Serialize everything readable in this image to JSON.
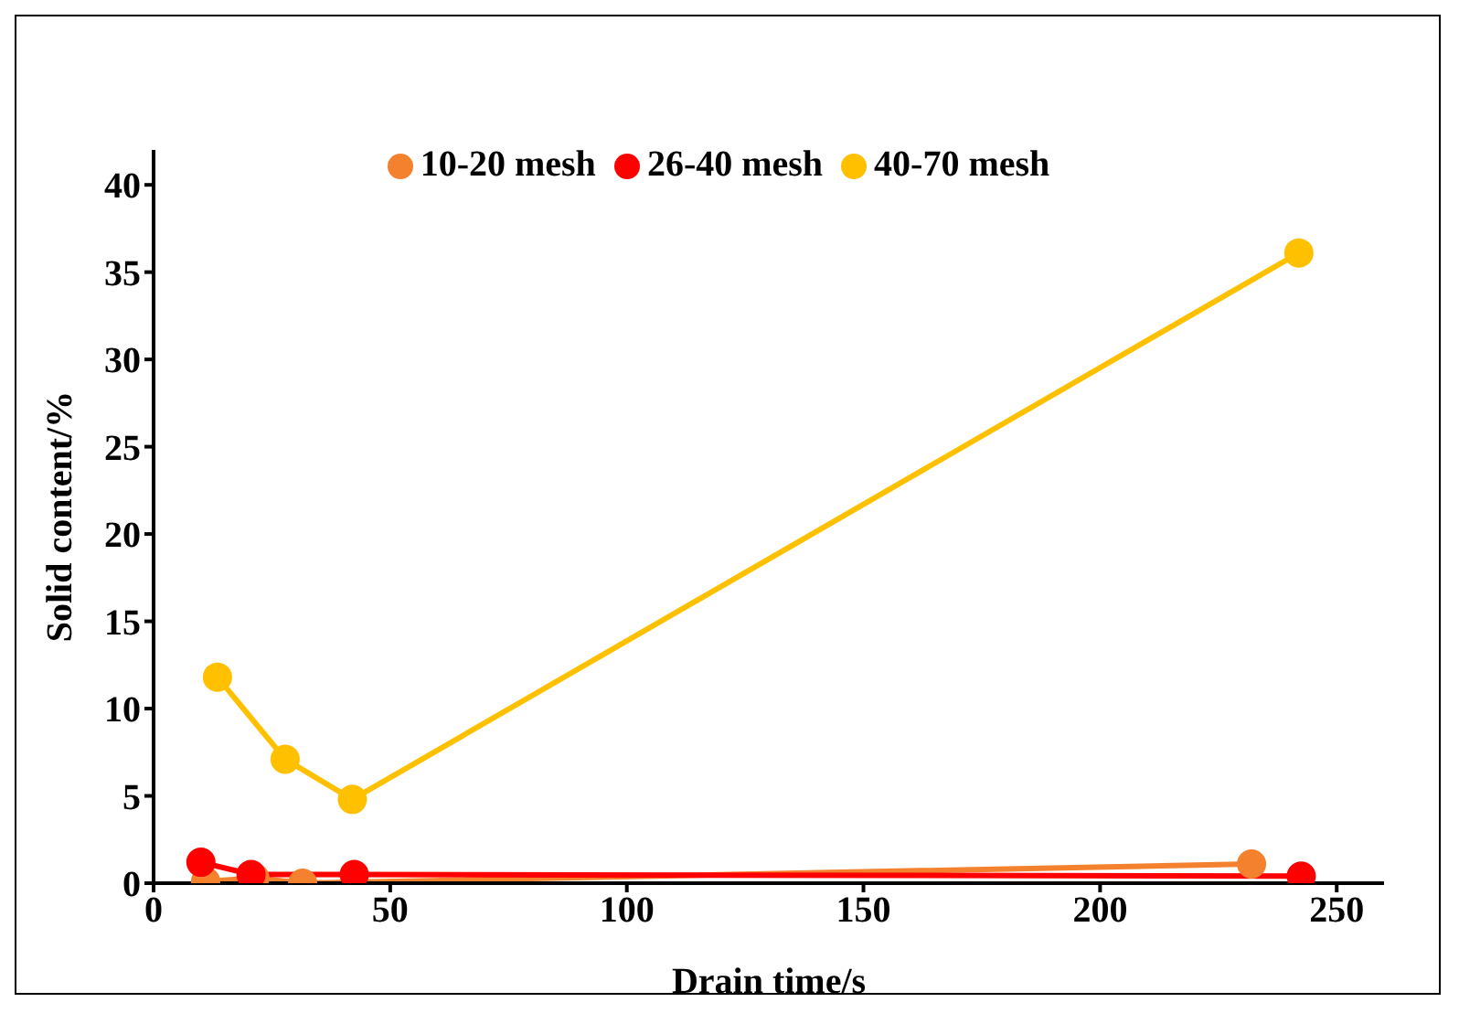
{
  "chart_data": {
    "type": "line",
    "xlabel": "Drain time/s",
    "ylabel": "Solid content/%",
    "xlim": [
      0,
      260
    ],
    "xticks": [
      0,
      50,
      100,
      150,
      200,
      250
    ],
    "ylim": [
      0,
      42
    ],
    "yticks": [
      0,
      5,
      10,
      15,
      20,
      25,
      30,
      35,
      40
    ],
    "legend": "top",
    "marker": "circle",
    "line_style": "solid",
    "grid": false,
    "series": [
      {
        "name": "10-20 mesh",
        "color": "#f4812d",
        "x": [
          11,
          21.4,
          31.5,
          232
        ],
        "values": [
          0.1,
          0.3,
          0,
          1.1
        ]
      },
      {
        "name": "26-40 mesh",
        "color": "#ff0000",
        "x": [
          10,
          20.6,
          42.4,
          242.5
        ],
        "values": [
          1.2,
          0.5,
          0.5,
          0.4
        ]
      },
      {
        "name": "40-70 mesh",
        "color": "#ffc000",
        "x": [
          13.5,
          27.8,
          42,
          242
        ],
        "values": [
          11.8,
          7.1,
          4.8,
          36.1
        ]
      }
    ]
  }
}
